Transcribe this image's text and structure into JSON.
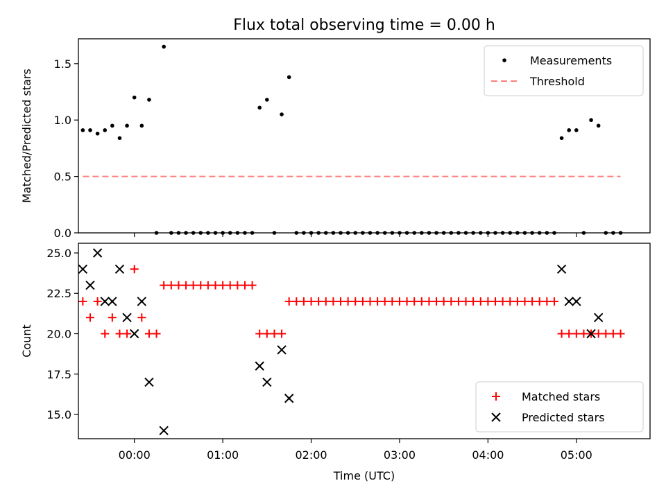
{
  "chart_data": [
    {
      "type": "scatter",
      "title": "Flux total observing time = 0.00 h",
      "xlabel": "",
      "ylabel": "Matched/Predicted stars",
      "xlim": [
        "-00:38",
        "05:50"
      ],
      "ylim": [
        0,
        1.72
      ],
      "yticks": [
        {
          "value": 0.0,
          "label": "0.0"
        },
        {
          "value": 0.5,
          "label": "0.5"
        },
        {
          "value": 1.0,
          "label": "1.0"
        },
        {
          "value": 1.5,
          "label": "1.5"
        }
      ],
      "x_tick_times": [
        "00:00",
        "01:00",
        "02:00",
        "03:00",
        "04:00",
        "05:00"
      ],
      "grid": false,
      "legend_position": "top-right",
      "series": [
        {
          "name": "Measurements",
          "marker": "dot",
          "color": "#000000",
          "x": [
            "-00:35",
            "-00:30",
            "-00:25",
            "-00:20",
            "-00:15",
            "-00:10",
            "-00:05",
            "00:00",
            "00:05",
            "00:10",
            "00:15",
            "00:20",
            "00:25",
            "00:30",
            "00:35",
            "00:40",
            "00:45",
            "00:50",
            "00:55",
            "01:00",
            "01:05",
            "01:10",
            "01:15",
            "01:20",
            "01:25",
            "01:30",
            "01:35",
            "01:40",
            "01:45",
            "01:50",
            "01:55",
            "02:00",
            "02:05",
            "02:10",
            "02:15",
            "02:20",
            "02:25",
            "02:30",
            "02:35",
            "02:40",
            "02:45",
            "02:50",
            "02:55",
            "03:00",
            "03:05",
            "03:10",
            "03:15",
            "03:20",
            "03:25",
            "03:30",
            "03:35",
            "03:40",
            "03:45",
            "03:50",
            "03:55",
            "04:00",
            "04:05",
            "04:10",
            "04:15",
            "04:20",
            "04:25",
            "04:30",
            "04:35",
            "04:40",
            "04:45",
            "04:50",
            "04:55",
            "05:00",
            "05:05",
            "05:10",
            "05:15",
            "05:20",
            "05:25",
            "05:30"
          ],
          "y": [
            0.91,
            0.91,
            0.88,
            0.91,
            0.95,
            0.84,
            0.95,
            1.2,
            0.95,
            1.18,
            0,
            1.65,
            0,
            0,
            0,
            0,
            0,
            0,
            0,
            0,
            0,
            0,
            0,
            0,
            1.11,
            1.18,
            0,
            1.05,
            1.38,
            0,
            0,
            0,
            0,
            0,
            0,
            0,
            0,
            0,
            0,
            0,
            0,
            0,
            0,
            0,
            0,
            0,
            0,
            0,
            0,
            0,
            0,
            0,
            0,
            0,
            0,
            0,
            0,
            0,
            0,
            0,
            0,
            0,
            0,
            0,
            0,
            0.84,
            0.91,
            0.91,
            0,
            1.0,
            0.95,
            0,
            0,
            0
          ]
        },
        {
          "name": "Threshold",
          "style": "dashed",
          "color": "#ff7f7f",
          "x": [
            "-00:35",
            "05:30"
          ],
          "y": [
            0.5,
            0.5
          ]
        }
      ]
    },
    {
      "type": "scatter",
      "title": "",
      "xlabel": "Time (UTC)",
      "ylabel": "Count",
      "xlim": [
        "-00:38",
        "05:50"
      ],
      "ylim": [
        13.5,
        25.6
      ],
      "yticks": [
        {
          "value": 15.0,
          "label": "15.0"
        },
        {
          "value": 17.5,
          "label": "17.5"
        },
        {
          "value": 20.0,
          "label": "20.0"
        },
        {
          "value": 22.5,
          "label": "22.5"
        },
        {
          "value": 25.0,
          "label": "25.0"
        }
      ],
      "x_tick_times": [
        "00:00",
        "01:00",
        "02:00",
        "03:00",
        "04:00",
        "05:00"
      ],
      "grid": false,
      "legend_position": "bottom-right",
      "series": [
        {
          "name": "Matched stars",
          "marker": "plus",
          "color": "#ff0000",
          "x": [
            "-00:35",
            "-00:30",
            "-00:25",
            "-00:20",
            "-00:15",
            "-00:10",
            "-00:05",
            "00:00",
            "00:05",
            "00:10",
            "00:15",
            "00:20",
            "00:25",
            "00:30",
            "00:35",
            "00:40",
            "00:45",
            "00:50",
            "00:55",
            "01:00",
            "01:05",
            "01:10",
            "01:15",
            "01:20",
            "01:25",
            "01:30",
            "01:35",
            "01:40",
            "01:45",
            "01:50",
            "01:55",
            "02:00",
            "02:05",
            "02:10",
            "02:15",
            "02:20",
            "02:25",
            "02:30",
            "02:35",
            "02:40",
            "02:45",
            "02:50",
            "02:55",
            "03:00",
            "03:05",
            "03:10",
            "03:15",
            "03:20",
            "03:25",
            "03:30",
            "03:35",
            "03:40",
            "03:45",
            "03:50",
            "03:55",
            "04:00",
            "04:05",
            "04:10",
            "04:15",
            "04:20",
            "04:25",
            "04:30",
            "04:35",
            "04:40",
            "04:45",
            "04:50",
            "04:55",
            "05:00",
            "05:05",
            "05:10",
            "05:15",
            "05:20",
            "05:25",
            "05:30"
          ],
          "y": [
            22,
            21,
            22,
            20,
            21,
            20,
            20,
            24,
            21,
            20,
            20,
            23,
            23,
            23,
            23,
            23,
            23,
            23,
            23,
            23,
            23,
            23,
            23,
            23,
            20,
            20,
            20,
            20,
            22,
            22,
            22,
            22,
            22,
            22,
            22,
            22,
            22,
            22,
            22,
            22,
            22,
            22,
            22,
            22,
            22,
            22,
            22,
            22,
            22,
            22,
            22,
            22,
            22,
            22,
            22,
            22,
            22,
            22,
            22,
            22,
            22,
            22,
            22,
            22,
            22,
            20,
            20,
            20,
            20,
            20,
            20,
            20,
            20,
            20
          ]
        },
        {
          "name": "Predicted stars",
          "marker": "x",
          "color": "#000000",
          "x": [
            "-00:35",
            "-00:30",
            "-00:25",
            "-00:20",
            "-00:15",
            "-00:10",
            "-00:05",
            "00:00",
            "00:05",
            "00:10",
            "00:20",
            "01:25",
            "01:30",
            "01:40",
            "01:45",
            "04:50",
            "04:55",
            "05:00",
            "05:10",
            "05:15"
          ],
          "y": [
            24,
            23,
            25,
            22,
            22,
            24,
            21,
            20,
            22,
            17,
            14,
            18,
            17,
            19,
            16,
            24,
            22,
            22,
            20,
            21
          ]
        }
      ]
    }
  ]
}
